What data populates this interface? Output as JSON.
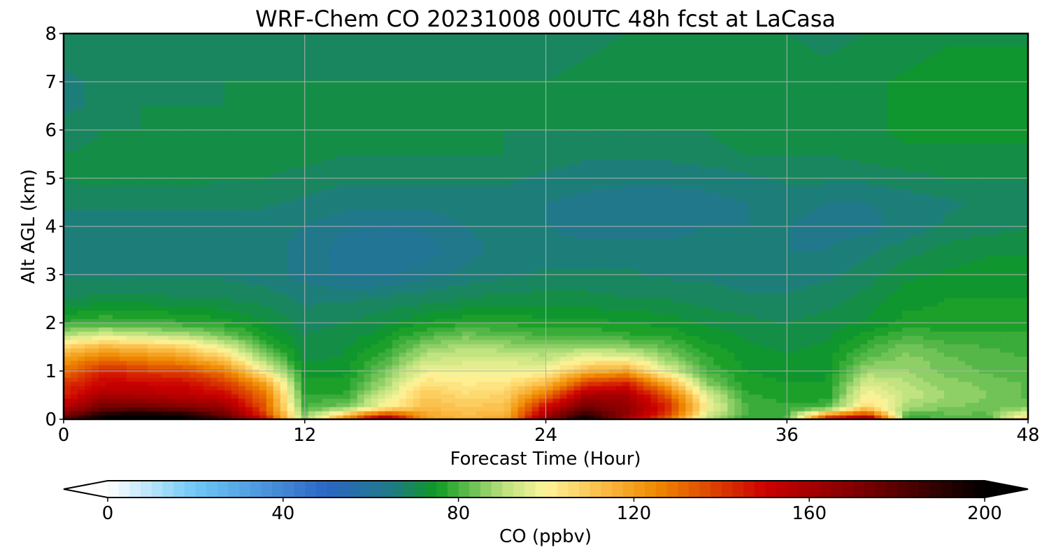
{
  "chart_data": {
    "type": "heatmap",
    "title": "WRF-Chem CO  20231008 00UTC 48h fcst at LaCasa",
    "xlabel": "Forecast Time (Hour)",
    "ylabel": "Alt AGL (km)",
    "xlim": [
      0,
      48
    ],
    "ylim": [
      0,
      8
    ],
    "x_ticks": [
      0,
      12,
      24,
      36,
      48
    ],
    "y_ticks": [
      0,
      1,
      2,
      3,
      4,
      5,
      6,
      7,
      8
    ],
    "grid": true,
    "colorbar": {
      "label": "CO  (ppbv)",
      "range": [
        0,
        200
      ],
      "ticks": [
        0,
        40,
        80,
        120,
        160,
        200
      ],
      "extend": "both",
      "orientation": "horizontal",
      "anchors": [
        {
          "v": 0,
          "c": "#ffffff"
        },
        {
          "v": 20,
          "c": "#6ec8f5"
        },
        {
          "v": 50,
          "c": "#2b66c4"
        },
        {
          "v": 65,
          "c": "#1f7a85"
        },
        {
          "v": 75,
          "c": "#0e9a22"
        },
        {
          "v": 90,
          "c": "#b8e07c"
        },
        {
          "v": 100,
          "c": "#fff59a"
        },
        {
          "v": 112,
          "c": "#fbbf4a"
        },
        {
          "v": 125,
          "c": "#f08a00"
        },
        {
          "v": 150,
          "c": "#cc0000"
        },
        {
          "v": 175,
          "c": "#6e0000"
        },
        {
          "v": 200,
          "c": "#000000"
        }
      ]
    },
    "grid_data": {
      "x": [
        0,
        2,
        4,
        6,
        8,
        10,
        12,
        14,
        16,
        18,
        20,
        22,
        24,
        26,
        28,
        30,
        32,
        34,
        36,
        38,
        40,
        42,
        44,
        46,
        48
      ],
      "y": [
        0,
        0.1,
        0.25,
        0.5,
        0.75,
        1.0,
        1.25,
        1.5,
        1.75,
        2.0,
        2.5,
        3.0,
        3.5,
        4.0,
        4.5,
        5.0,
        5.5,
        6.0,
        6.5,
        7.0,
        7.5,
        8.0
      ],
      "values": [
        [
          180,
          200,
          200,
          200,
          185,
          150,
          85,
          125,
          170,
          120,
          115,
          118,
          165,
          200,
          160,
          130,
          90,
          78,
          80,
          150,
          170,
          78,
          80,
          80,
          110
        ],
        [
          170,
          195,
          200,
          195,
          175,
          140,
          85,
          110,
          140,
          118,
          112,
          115,
          160,
          190,
          165,
          140,
          95,
          80,
          80,
          120,
          140,
          80,
          82,
          82,
          100
        ],
        [
          155,
          175,
          175,
          170,
          165,
          135,
          80,
          85,
          100,
          113,
          110,
          112,
          150,
          175,
          165,
          145,
          100,
          80,
          78,
          80,
          108,
          88,
          85,
          84,
          85
        ],
        [
          145,
          160,
          158,
          155,
          150,
          130,
          78,
          78,
          95,
          110,
          106,
          108,
          130,
          160,
          160,
          135,
          95,
          78,
          76,
          76,
          100,
          92,
          87,
          85,
          82
        ],
        [
          140,
          150,
          150,
          148,
          140,
          120,
          76,
          76,
          88,
          105,
          102,
          103,
          112,
          140,
          145,
          118,
          85,
          76,
          75,
          75,
          95,
          90,
          86,
          84,
          82
        ],
        [
          130,
          145,
          140,
          138,
          128,
          100,
          74,
          74,
          84,
          98,
          98,
          98,
          100,
          115,
          120,
          96,
          80,
          75,
          74,
          74,
          88,
          88,
          84,
          82,
          81
        ],
        [
          120,
          130,
          126,
          122,
          110,
          88,
          72,
          73,
          80,
          92,
          94,
          94,
          92,
          100,
          100,
          88,
          78,
          74,
          73,
          74,
          83,
          86,
          83,
          81,
          80
        ],
        [
          108,
          115,
          112,
          108,
          96,
          80,
          71,
          72,
          77,
          86,
          90,
          88,
          86,
          88,
          86,
          82,
          76,
          73,
          72,
          73,
          79,
          84,
          81,
          80,
          79
        ],
        [
          90,
          95,
          92,
          90,
          84,
          76,
          70,
          71,
          74,
          80,
          84,
          82,
          80,
          80,
          78,
          77,
          74,
          72,
          71,
          72,
          76,
          80,
          78,
          78,
          78
        ],
        [
          78,
          80,
          79,
          78,
          76,
          73,
          69,
          70,
          72,
          75,
          77,
          77,
          76,
          76,
          75,
          74,
          72,
          71,
          70,
          71,
          73,
          76,
          76,
          76,
          76
        ],
        [
          70,
          71,
          71,
          70,
          70,
          69,
          67,
          67,
          68,
          69,
          70,
          71,
          71,
          71,
          70,
          70,
          69,
          68,
          68,
          69,
          71,
          74,
          75,
          75,
          75
        ],
        [
          67,
          67,
          67,
          67,
          67,
          66,
          64,
          62,
          62,
          64,
          66,
          67,
          68,
          68,
          68,
          67,
          67,
          66,
          66,
          67,
          69,
          72,
          73,
          74,
          74
        ],
        [
          66,
          66,
          66,
          66,
          66,
          66,
          64,
          61,
          60,
          61,
          64,
          66,
          66,
          66,
          66,
          66,
          66,
          65,
          65,
          65,
          67,
          69,
          71,
          72,
          72
        ],
        [
          66,
          66,
          66,
          66,
          66,
          66,
          65,
          63,
          62,
          63,
          65,
          66,
          65,
          64,
          64,
          64,
          65,
          65,
          65,
          64,
          64,
          66,
          68,
          69,
          70
        ],
        [
          68,
          68,
          68,
          68,
          68,
          68,
          67,
          66,
          66,
          66,
          66,
          66,
          65,
          64,
          63,
          63,
          64,
          65,
          66,
          65,
          65,
          66,
          67,
          68,
          68
        ],
        [
          70,
          71,
          71,
          71,
          70,
          70,
          69,
          68,
          68,
          68,
          68,
          68,
          67,
          66,
          66,
          66,
          66,
          67,
          68,
          68,
          68,
          69,
          70,
          70,
          70
        ],
        [
          70,
          71,
          71,
          71,
          71,
          71,
          71,
          70,
          70,
          70,
          70,
          70,
          69,
          68,
          68,
          68,
          69,
          70,
          70,
          70,
          71,
          72,
          72,
          72,
          72
        ],
        [
          68,
          70,
          70,
          70,
          70,
          71,
          71,
          70,
          70,
          70,
          70,
          70,
          70,
          70,
          70,
          70,
          70,
          71,
          71,
          71,
          72,
          73,
          73,
          73,
          73
        ],
        [
          67,
          68,
          70,
          70,
          70,
          71,
          71,
          70,
          70,
          70,
          70,
          70,
          70,
          71,
          71,
          71,
          71,
          71,
          71,
          71,
          72,
          73,
          74,
          74,
          74
        ],
        [
          67,
          68,
          69,
          69,
          70,
          70,
          70,
          70,
          70,
          70,
          70,
          70,
          70,
          71,
          72,
          72,
          72,
          71,
          71,
          70,
          72,
          73,
          74,
          74,
          74
        ],
        [
          68,
          68,
          68,
          69,
          69,
          69,
          69,
          69,
          69,
          69,
          69,
          69,
          69,
          70,
          71,
          72,
          72,
          72,
          71,
          70,
          71,
          72,
          73,
          73,
          73
        ],
        [
          68,
          68,
          68,
          68,
          68,
          68,
          68,
          68,
          68,
          68,
          68,
          68,
          68,
          69,
          70,
          71,
          71,
          71,
          70,
          69,
          70,
          71,
          72,
          72,
          72
        ]
      ]
    }
  }
}
